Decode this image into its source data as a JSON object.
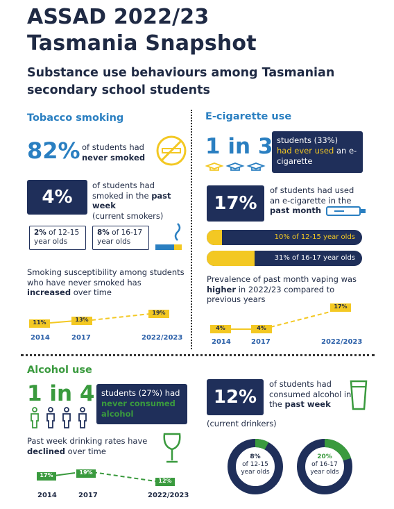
{
  "title_line1": "ASSAD 2022/23",
  "title_line2": "Tasmania Snapshot",
  "subtitle": "Substance use behaviours among Tasmanian secondary school students",
  "tobacco": {
    "heading": "Tobacco smoking",
    "stat1_value": "82%",
    "stat1_text_a": "of students had",
    "stat1_text_b": "never smoked",
    "stat2_value": "4%",
    "stat2_text_a": "of students had",
    "stat2_text_b": "smoked in the",
    "stat2_text_bold": "past week",
    "stat2_text_c": "(current smokers)",
    "age1_pct": "2%",
    "age1_rest": "of 12-15 year olds",
    "age2_pct": "8%",
    "age2_rest": "of 16-17 year olds",
    "trend_text_a": "Smoking susceptibility among students who have never smoked has",
    "trend_text_bold": "increased",
    "trend_text_c": "over time",
    "trend_values": [
      "11%",
      "13%",
      "19%"
    ],
    "trend_years": [
      "2014",
      "2017",
      "2022/2023"
    ]
  },
  "ecig": {
    "heading": "E-cigarette use",
    "ratio": "1 in 3",
    "ratio_text_a": "students (33%)",
    "ratio_text_highlight": "had ever used",
    "ratio_text_b": "an e-cigarette",
    "stat_value": "17%",
    "stat_text_a": "of students had used an e-cigarette in the",
    "stat_text_bold": "past month",
    "bar1_label": "10% of 12-15 year olds",
    "bar1_pct": 10,
    "bar2_label": "31% of 16-17 year olds",
    "bar2_pct": 31,
    "trend_text_a": "Prevalence of past month vaping was",
    "trend_text_bold": "higher",
    "trend_text_c": "in 2022/23 compared to previous years",
    "trend_values": [
      "4%",
      "4%",
      "17%"
    ],
    "trend_years": [
      "2014",
      "2017",
      "2022/2023"
    ]
  },
  "alcohol": {
    "heading": "Alcohol use",
    "ratio": "1 in 4",
    "ratio_text_a": "students (27%) had",
    "ratio_text_highlight": "never consumed alcohol",
    "stat_value": "12%",
    "stat_text_a": "of students had consumed alcohol in the",
    "stat_text_bold": "past week",
    "stat_text_c": "(current drinkers)",
    "donut1_pct": 8,
    "donut1_value": "8%",
    "donut1_label": "of 12-15 year olds",
    "donut2_pct": 20,
    "donut2_value": "20%",
    "donut2_label": "of 16-17 year olds",
    "trend_text_a": "Past week drinking rates have",
    "trend_text_bold": "declined",
    "trend_text_c": "over time",
    "trend_values": [
      "17%",
      "19%",
      "12%"
    ],
    "trend_years": [
      "2014",
      "2017",
      "2022/2023"
    ]
  },
  "colors": {
    "navy": "#1f2f5a",
    "blue": "#2a7fc1",
    "yellow": "#f3c823",
    "green": "#3a9a3e"
  }
}
